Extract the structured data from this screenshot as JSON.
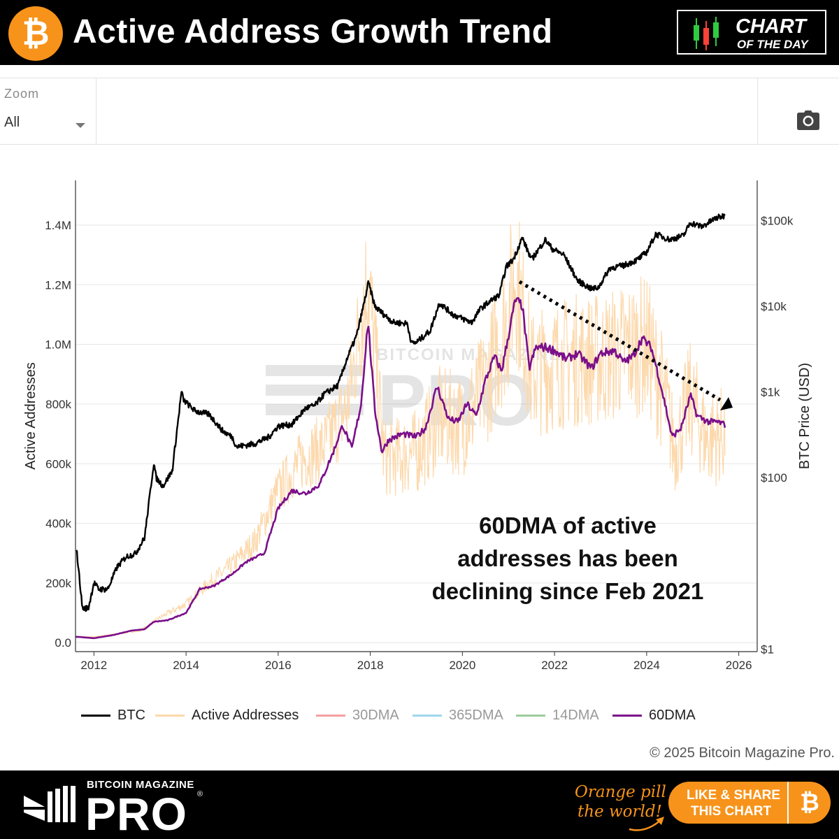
{
  "header": {
    "title": "Active Address Growth Trend",
    "logo_glyph": "₿",
    "logo_icon": "bitcoin-logo-icon",
    "badge_line1": "CHART",
    "badge_line2": "OF THE DAY",
    "badge_icon": "candlestick-icon"
  },
  "zoom": {
    "label": "Zoom",
    "selected": "All",
    "camera_icon": "camera-icon"
  },
  "annotation": {
    "lines": [
      "60DMA of active",
      "addresses has been",
      "declining since Feb 2021"
    ]
  },
  "copyright": "© 2025 Bitcoin Magazine Pro.",
  "footer": {
    "brand_small": "BITCOIN MAGAZINE",
    "brand_large": "PRO",
    "registered": "®",
    "tagline_line1": "Orange pill",
    "tagline_line2": "the world!",
    "share_line1": "LIKE & SHARE",
    "share_line2": "THIS CHART",
    "share_glyph": "₿"
  },
  "colors": {
    "btc": "#000000",
    "active": "#fcd9ad",
    "dma30": "#f4a0a0",
    "dma365": "#9fd6ec",
    "dma14": "#9ccc9c",
    "dma60": "#7b0f8a",
    "orange": "#f7931a"
  },
  "chart_data": {
    "type": "line",
    "xlabel": "",
    "ylabel": "Active Addresses",
    "y2label": "BTC Price (USD)",
    "x_range": [
      2011.6,
      2026.4
    ],
    "ylim": [
      -30000,
      1550000
    ],
    "y2_log_range": [
      -0.03,
      5.47
    ],
    "y2_scale": "log",
    "x_ticks": [
      "2012",
      "2014",
      "2016",
      "2018",
      "2020",
      "2022",
      "2024",
      "2026"
    ],
    "x_tick_values": [
      2012,
      2014,
      2016,
      2018,
      2020,
      2022,
      2024,
      2026
    ],
    "y_ticks": [
      "0.0",
      "200k",
      "400k",
      "600k",
      "800k",
      "1.0M",
      "1.2M",
      "1.4M"
    ],
    "y_tick_values": [
      0,
      200000,
      400000,
      600000,
      800000,
      1000000,
      1200000,
      1400000
    ],
    "y2_ticks": [
      "$1",
      "$100",
      "$1k",
      "$10k",
      "$100k"
    ],
    "y2_tick_values": [
      1,
      100,
      1000,
      10000,
      100000
    ],
    "grid": "horizontal",
    "legend_position": "bottom",
    "series": [
      {
        "name": "BTC",
        "axis": "right",
        "x": [
          2011.62,
          2011.75,
          2011.88,
          2012.0,
          2012.1,
          2012.3,
          2012.5,
          2012.7,
          2012.9,
          2013.1,
          2013.3,
          2013.35,
          2013.5,
          2013.7,
          2013.9,
          2013.95,
          2014.2,
          2014.5,
          2014.8,
          2015.0,
          2015.1,
          2015.5,
          2015.8,
          2016.0,
          2016.3,
          2016.6,
          2016.8,
          2017.0,
          2017.3,
          2017.5,
          2017.7,
          2017.85,
          2017.96,
          2018.1,
          2018.3,
          2018.5,
          2018.8,
          2018.9,
          2019.0,
          2019.3,
          2019.5,
          2019.8,
          2020.0,
          2020.2,
          2020.4,
          2020.6,
          2020.8,
          2020.95,
          2021.1,
          2021.3,
          2021.5,
          2021.8,
          2021.95,
          2022.2,
          2022.5,
          2022.8,
          2022.95,
          2023.2,
          2023.5,
          2023.8,
          2024.0,
          2024.2,
          2024.5,
          2024.8,
          2024.95,
          2025.2,
          2025.5,
          2025.7
        ],
        "values": [
          15,
          3,
          3,
          6,
          5,
          5,
          9,
          12,
          13,
          20,
          150,
          100,
          80,
          120,
          1000,
          800,
          600,
          550,
          350,
          300,
          230,
          250,
          300,
          400,
          420,
          650,
          700,
          950,
          1200,
          2500,
          4500,
          10000,
          19000,
          10000,
          8000,
          6500,
          6300,
          3700,
          3800,
          5200,
          11000,
          8000,
          7200,
          6500,
          9500,
          11500,
          13500,
          29000,
          35000,
          63000,
          35000,
          60000,
          47000,
          40000,
          20000,
          16000,
          16500,
          28000,
          30000,
          35000,
          43000,
          70000,
          60000,
          67000,
          95000,
          85000,
          107000,
          115000
        ]
      },
      {
        "name": "Active Addresses",
        "axis": "left",
        "x": [
          2011.6,
          2012.0,
          2012.5,
          2013.0,
          2013.5,
          2014.0,
          2014.5,
          2015.0,
          2015.5,
          2016.0,
          2016.5,
          2017.0,
          2017.5,
          2017.95,
          2018.3,
          2018.5,
          2019.0,
          2019.5,
          2020.0,
          2020.5,
          2021.0,
          2021.15,
          2021.5,
          2022.0,
          2022.5,
          2023.0,
          2023.5,
          2024.0,
          2024.4,
          2024.6,
          2024.95,
          2025.3,
          2025.7
        ],
        "values": [
          20000,
          20000,
          30000,
          40000,
          90000,
          130000,
          200000,
          260000,
          340000,
          510000,
          610000,
          660000,
          790000,
          1230000,
          620000,
          620000,
          640000,
          750000,
          730000,
          860000,
          1100000,
          1250000,
          900000,
          930000,
          950000,
          950000,
          980000,
          1000000,
          820000,
          650000,
          820000,
          680000,
          700000
        ]
      },
      {
        "name": "30DMA",
        "axis": "left",
        "values": []
      },
      {
        "name": "365DMA",
        "axis": "left",
        "values": []
      },
      {
        "name": "14DMA",
        "axis": "left",
        "values": []
      },
      {
        "name": "60DMA",
        "axis": "left",
        "x": [
          2011.6,
          2012.0,
          2012.4,
          2012.8,
          2013.1,
          2013.3,
          2013.6,
          2014.0,
          2014.3,
          2014.6,
          2015.0,
          2015.3,
          2015.7,
          2016.0,
          2016.3,
          2016.6,
          2016.9,
          2017.2,
          2017.4,
          2017.6,
          2017.8,
          2017.95,
          2018.1,
          2018.25,
          2018.4,
          2018.7,
          2019.0,
          2019.2,
          2019.45,
          2019.7,
          2019.9,
          2020.1,
          2020.3,
          2020.5,
          2020.7,
          2020.85,
          2021.0,
          2021.15,
          2021.3,
          2021.45,
          2021.6,
          2021.8,
          2022.0,
          2022.25,
          2022.5,
          2022.8,
          2023.0,
          2023.3,
          2023.5,
          2023.7,
          2023.9,
          2024.1,
          2024.25,
          2024.4,
          2024.55,
          2024.75,
          2024.95,
          2025.1,
          2025.35,
          2025.55,
          2025.7
        ],
        "values": [
          20000,
          15000,
          25000,
          40000,
          45000,
          70000,
          75000,
          100000,
          180000,
          190000,
          230000,
          270000,
          300000,
          450000,
          510000,
          500000,
          530000,
          640000,
          730000,
          650000,
          800000,
          1080000,
          780000,
          640000,
          680000,
          700000,
          690000,
          720000,
          860000,
          750000,
          740000,
          800000,
          760000,
          880000,
          960000,
          910000,
          1030000,
          1150000,
          1130000,
          920000,
          990000,
          990000,
          980000,
          950000,
          970000,
          920000,
          970000,
          980000,
          940000,
          960000,
          1020000,
          990000,
          900000,
          800000,
          690000,
          720000,
          830000,
          760000,
          740000,
          740000,
          730000
        ]
      }
    ]
  }
}
